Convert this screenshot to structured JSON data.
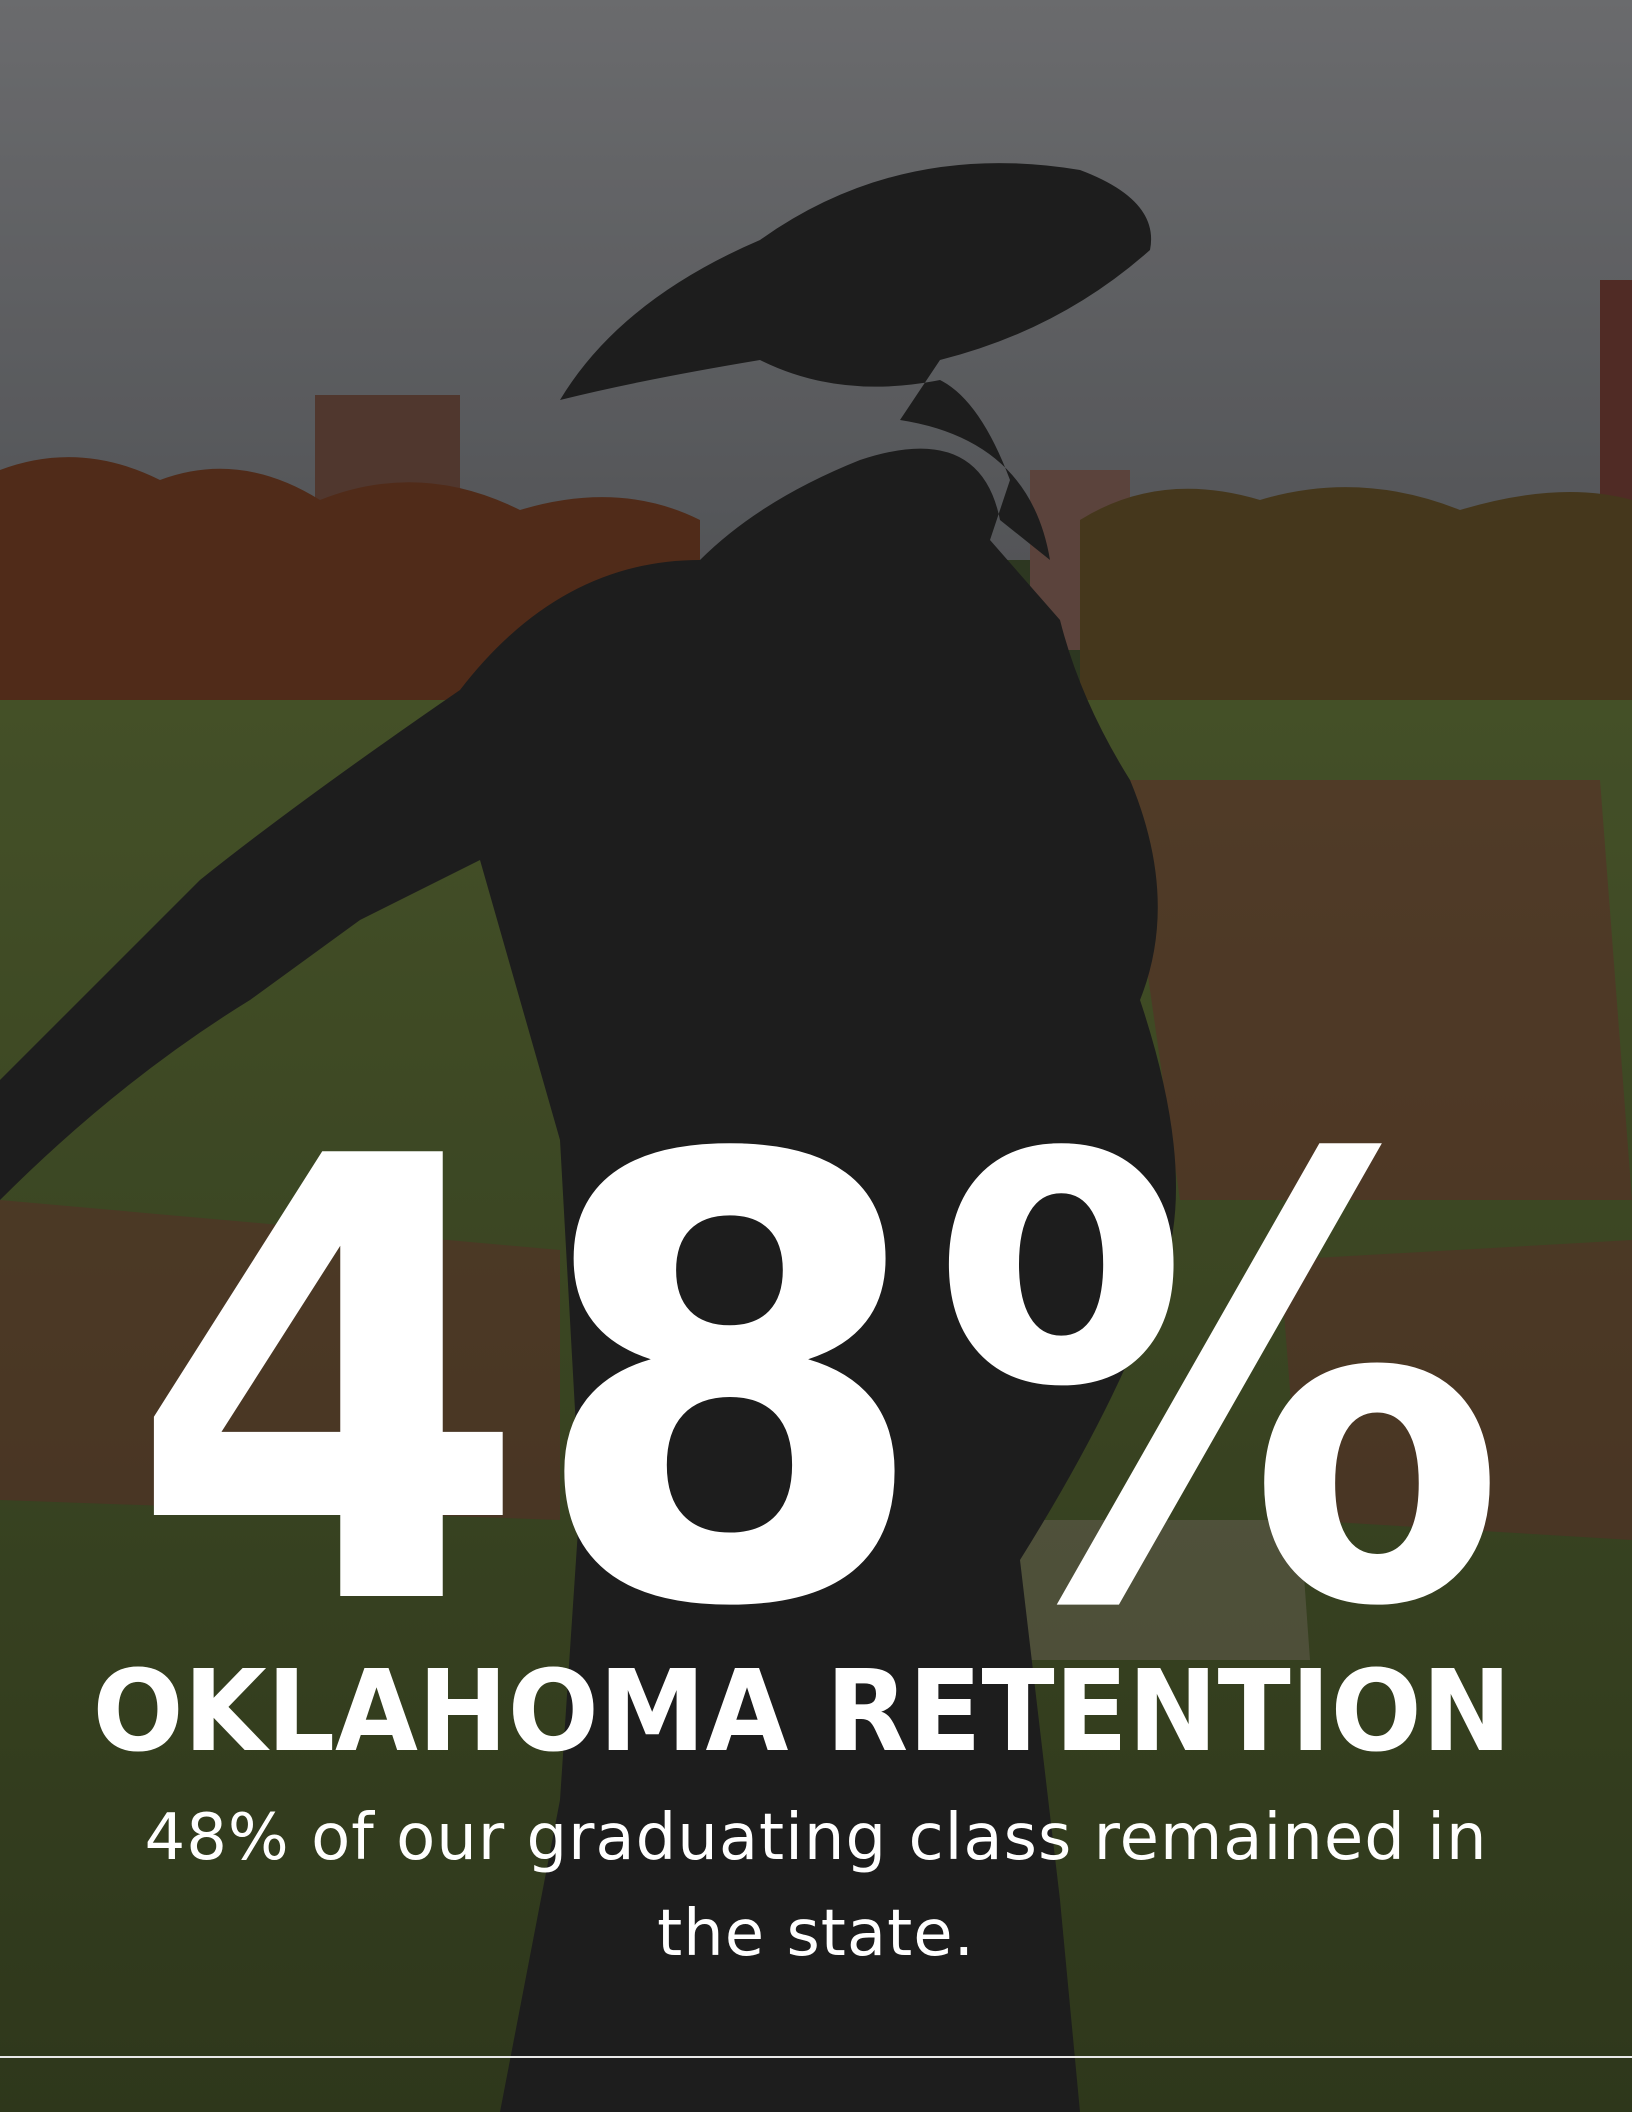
{
  "headline": {
    "stat": "48%",
    "title": "OKLAHOMA RETENTION",
    "description": "48% of our graduating class remained in the state."
  }
}
